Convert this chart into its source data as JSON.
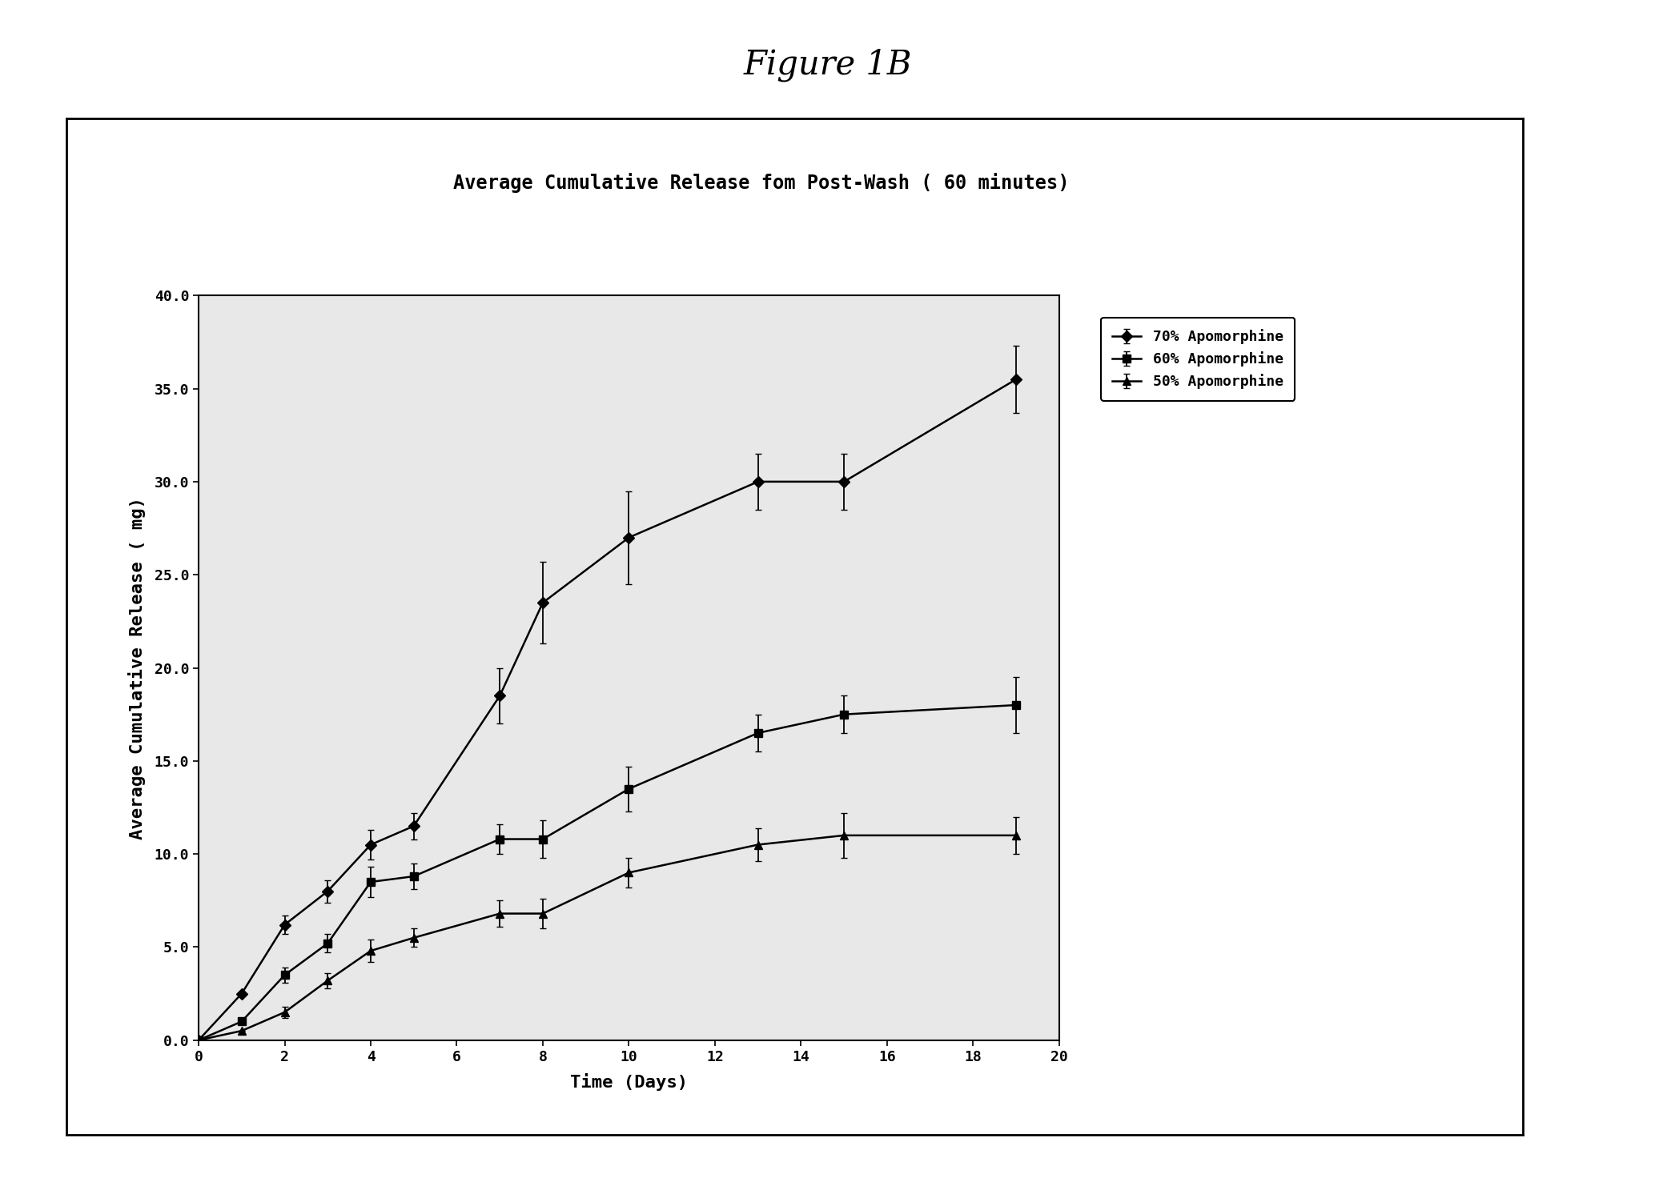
{
  "title_figure": "Figure 1B",
  "title_chart": "Average Cumulative Release fom Post-Wash ( 60 minutes)",
  "xlabel": "Time (Days)",
  "ylabel": "Average Cumulative Release ( mg)",
  "xlim": [
    0,
    20
  ],
  "ylim": [
    0,
    40
  ],
  "xticks": [
    0,
    2,
    4,
    6,
    8,
    10,
    12,
    14,
    16,
    18,
    20
  ],
  "yticks": [
    0.0,
    5.0,
    10.0,
    15.0,
    20.0,
    25.0,
    30.0,
    35.0,
    40.0
  ],
  "series_70_x": [
    0,
    1,
    2,
    3,
    4,
    5,
    7,
    8,
    10,
    13,
    15,
    19
  ],
  "series_70_y": [
    0,
    2.5,
    6.2,
    8.0,
    10.5,
    11.5,
    18.5,
    23.5,
    27.0,
    30.0,
    30.0,
    35.5
  ],
  "series_70_yerr": [
    0,
    0.0,
    0.5,
    0.6,
    0.8,
    0.7,
    1.5,
    2.2,
    2.5,
    1.5,
    1.5,
    1.8
  ],
  "series_60_x": [
    0,
    1,
    2,
    3,
    4,
    5,
    7,
    8,
    10,
    13,
    15,
    19
  ],
  "series_60_y": [
    0,
    1.0,
    3.5,
    5.2,
    8.5,
    8.8,
    10.8,
    10.8,
    13.5,
    16.5,
    17.5,
    18.0
  ],
  "series_60_yerr": [
    0,
    0.0,
    0.4,
    0.5,
    0.8,
    0.7,
    0.8,
    1.0,
    1.2,
    1.0,
    1.0,
    1.5
  ],
  "series_50_x": [
    0,
    1,
    2,
    3,
    4,
    5,
    7,
    8,
    10,
    13,
    15,
    19
  ],
  "series_50_y": [
    0,
    0.5,
    1.5,
    3.2,
    4.8,
    5.5,
    6.8,
    6.8,
    9.0,
    10.5,
    11.0,
    11.0
  ],
  "series_50_yerr": [
    0,
    0.0,
    0.3,
    0.4,
    0.6,
    0.5,
    0.7,
    0.8,
    0.8,
    0.9,
    1.2,
    1.0
  ],
  "legend_labels": [
    "70% Apomorphine",
    "60% Apomorphine",
    "50% Apomorphine"
  ],
  "line_color": "#000000",
  "bg_color": "#ffffff",
  "figure_title_fontsize": 30,
  "chart_title_fontsize": 17,
  "axis_label_fontsize": 16,
  "tick_fontsize": 13,
  "legend_fontsize": 13
}
